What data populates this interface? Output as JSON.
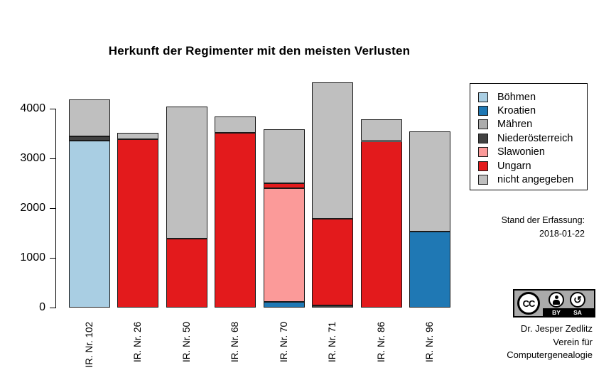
{
  "title": "Herkunft der Regimenter mit den meisten Verlusten",
  "chart_data": {
    "type": "bar",
    "stacked": true,
    "title": "Herkunft der Regimenter mit den meisten Verlusten",
    "categories": [
      "IR. Nr. 102",
      "IR. Nr. 26",
      "IR. Nr. 50",
      "IR. Nr. 68",
      "IR. Nr. 70",
      "IR. Nr. 71",
      "IR. Nr. 86",
      "IR. Nr. 96"
    ],
    "series": [
      {
        "name": "Böhmen",
        "color": "#a9cee3",
        "values": [
          3360,
          0,
          0,
          0,
          0,
          0,
          0,
          0
        ]
      },
      {
        "name": "Kroatien",
        "color": "#1f78b4",
        "values": [
          0,
          0,
          0,
          0,
          110,
          0,
          0,
          1525
        ]
      },
      {
        "name": "Mähren",
        "color": "#acacac",
        "values": [
          0,
          0,
          0,
          0,
          0,
          0,
          0,
          0
        ]
      },
      {
        "name": "Niederösterreich",
        "color": "#424242",
        "values": [
          80,
          0,
          0,
          0,
          0,
          40,
          0,
          0
        ]
      },
      {
        "name": "Slawonien",
        "color": "#fb9a99",
        "values": [
          0,
          0,
          0,
          0,
          2295,
          0,
          0,
          0
        ]
      },
      {
        "name": "Ungarn",
        "color": "#e31a1c",
        "values": [
          0,
          3390,
          1380,
          3515,
          100,
          1745,
          3350,
          0
        ]
      },
      {
        "name": "nicht angegeben",
        "color": "#bfbfbf",
        "values": [
          750,
          130,
          2670,
          330,
          1075,
          2745,
          435,
          2020
        ]
      }
    ],
    "totals": [
      4190,
      3520,
      4050,
      3845,
      3580,
      4530,
      3785,
      3545
    ],
    "xlabel": "",
    "ylabel": "",
    "ylim": [
      0,
      4530
    ],
    "yticks": [
      0,
      1000,
      2000,
      3000,
      4000
    ],
    "grid": false,
    "legend_position": "right",
    "bar_border_color": "#1a1a1a"
  },
  "annotations": {
    "stand_label": "Stand der Erfassung:",
    "stand_date": "2018-01-22",
    "credit_line1": "Dr. Jesper Zedlitz",
    "credit_line2": "Verein für",
    "credit_line3": "Computergenealogie"
  },
  "license_badge": {
    "cc": "CC",
    "by": "BY",
    "sa": "SA"
  }
}
